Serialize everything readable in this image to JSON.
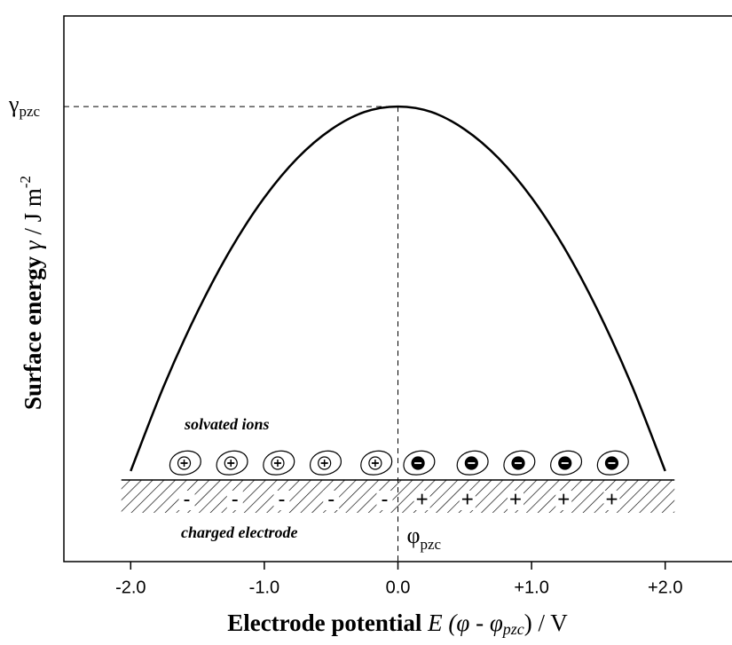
{
  "chart_data": {
    "type": "line",
    "x_label_parts": [
      "Electrode potential ",
      "E (φ",
      " - ",
      "φ",
      "pzc",
      ")",
      " / V"
    ],
    "y_label_parts": [
      "Surface energy ",
      "γ",
      " / J m",
      "-2"
    ],
    "peak_label_parts": [
      "γ",
      "pzc"
    ],
    "pzc_label_parts": [
      "φ",
      "pzc"
    ],
    "annotations": [
      "solvated ions",
      "charged electrode"
    ],
    "electrode_charges": [
      "-",
      "-",
      "-",
      "-",
      "-",
      "+",
      "+",
      "+",
      "+",
      "+"
    ],
    "x": [
      -2,
      -1.75,
      -1.5,
      -1.25,
      -1,
      -0.75,
      -0.5,
      -0.25,
      0,
      0.25,
      0.5,
      0.75,
      1,
      1.25,
      1.5,
      1.75,
      2
    ],
    "series": [
      {
        "color": "#000000",
        "values": [
          0.166,
          0.323,
          0.458,
          0.573,
          0.667,
          0.74,
          0.792,
          0.824,
          0.834,
          0.824,
          0.792,
          0.74,
          0.667,
          0.573,
          0.458,
          0.323,
          0.166
        ]
      }
    ],
    "xlim": [
      -2.5,
      2.5
    ],
    "ylim": [
      0,
      1
    ],
    "xticks": [
      {
        "value": -2,
        "label": "-2.0"
      },
      {
        "value": -1,
        "label": "-1.0"
      },
      {
        "value": 0,
        "label": "0.0"
      },
      {
        "value": 1,
        "label": "+1.0"
      },
      {
        "value": 2,
        "label": "+2.0"
      }
    ]
  }
}
